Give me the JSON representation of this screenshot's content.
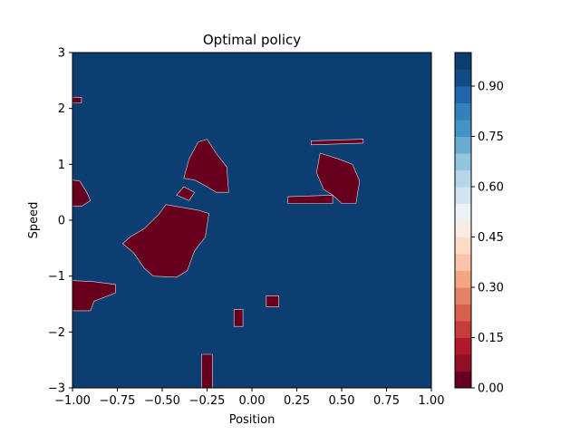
{
  "chart_data": {
    "type": "heatmap",
    "title": "Optimal policy",
    "xlabel": "Position",
    "ylabel": "Speed",
    "xlim": [
      -1.0,
      1.0
    ],
    "ylim": [
      -3,
      3
    ],
    "x_ticks": [
      {
        "value": -1.0,
        "label": "−1.00"
      },
      {
        "value": -0.75,
        "label": "−0.75"
      },
      {
        "value": -0.5,
        "label": "−0.50"
      },
      {
        "value": -0.25,
        "label": "−0.25"
      },
      {
        "value": 0.0,
        "label": "0.00"
      },
      {
        "value": 0.25,
        "label": "0.25"
      },
      {
        "value": 0.5,
        "label": "0.50"
      },
      {
        "value": 0.75,
        "label": "0.75"
      },
      {
        "value": 1.0,
        "label": "1.00"
      }
    ],
    "y_ticks": [
      {
        "value": -3,
        "label": "−3"
      },
      {
        "value": -2,
        "label": "−2"
      },
      {
        "value": -1,
        "label": "−1"
      },
      {
        "value": 0,
        "label": "0"
      },
      {
        "value": 1,
        "label": "1"
      },
      {
        "value": 2,
        "label": "2"
      },
      {
        "value": 3,
        "label": "3"
      }
    ],
    "colorbar": {
      "min": 0.0,
      "max": 1.0,
      "levels": 20,
      "colormap": "RdBu",
      "tick_values": [
        0.0,
        0.15,
        0.3,
        0.45,
        0.6,
        0.75,
        0.9
      ],
      "tick_labels": [
        "0.00",
        "0.15",
        "0.30",
        "0.45",
        "0.60",
        "0.75",
        "0.90"
      ],
      "bands": [
        "#67001f",
        "#930f27",
        "#b2182b",
        "#c43c3c",
        "#d6604d",
        "#e58267",
        "#f4a582",
        "#f9c4a9",
        "#fddbc7",
        "#f8ebe3",
        "#edf1f4",
        "#d1e5f0",
        "#b5d6e8",
        "#92c5de",
        "#6aacd0",
        "#4393c3",
        "#3480b9",
        "#2166ac",
        "#134b88",
        "#0c3e72"
      ]
    },
    "background_value": 1.0,
    "regions_value": 0.0,
    "regions": [
      {
        "name": "center-blob",
        "points": [
          [
            -0.72,
            -0.42
          ],
          [
            -0.66,
            -0.58
          ],
          [
            -0.6,
            -0.86
          ],
          [
            -0.55,
            -1.0
          ],
          [
            -0.42,
            -1.02
          ],
          [
            -0.36,
            -0.9
          ],
          [
            -0.32,
            -0.55
          ],
          [
            -0.26,
            -0.3
          ],
          [
            -0.24,
            0.12
          ],
          [
            -0.3,
            0.18
          ],
          [
            -0.48,
            0.28
          ],
          [
            -0.52,
            0.1
          ],
          [
            -0.6,
            -0.15
          ],
          [
            -0.68,
            -0.3
          ]
        ]
      },
      {
        "name": "upper-left-blob",
        "points": [
          [
            -0.38,
            0.75
          ],
          [
            -0.35,
            1.1
          ],
          [
            -0.3,
            1.4
          ],
          [
            -0.25,
            1.45
          ],
          [
            -0.2,
            1.2
          ],
          [
            -0.14,
            0.95
          ],
          [
            -0.13,
            0.5
          ],
          [
            -0.2,
            0.5
          ],
          [
            -0.25,
            0.6
          ],
          [
            -0.32,
            0.72
          ]
        ]
      },
      {
        "name": "right-blob",
        "points": [
          [
            0.38,
            1.2
          ],
          [
            0.48,
            1.1
          ],
          [
            0.56,
            1.0
          ],
          [
            0.6,
            0.7
          ],
          [
            0.58,
            0.3
          ],
          [
            0.5,
            0.3
          ],
          [
            0.45,
            0.45
          ],
          [
            0.4,
            0.55
          ],
          [
            0.36,
            0.85
          ]
        ]
      },
      {
        "name": "right-top-strip",
        "points": [
          [
            0.33,
            1.42
          ],
          [
            0.62,
            1.45
          ],
          [
            0.62,
            1.38
          ],
          [
            0.33,
            1.35
          ]
        ]
      },
      {
        "name": "right-lower-strip",
        "points": [
          [
            0.2,
            0.42
          ],
          [
            0.45,
            0.45
          ],
          [
            0.45,
            0.3
          ],
          [
            0.2,
            0.3
          ]
        ]
      },
      {
        "name": "left-bottom-blob",
        "points": [
          [
            -1.0,
            -1.08
          ],
          [
            -0.88,
            -1.1
          ],
          [
            -0.76,
            -1.15
          ],
          [
            -0.76,
            -1.3
          ],
          [
            -0.88,
            -1.45
          ],
          [
            -0.9,
            -1.62
          ],
          [
            -1.0,
            -1.62
          ]
        ]
      },
      {
        "name": "left-middle-blob",
        "points": [
          [
            -1.0,
            0.72
          ],
          [
            -0.96,
            0.7
          ],
          [
            -0.92,
            0.5
          ],
          [
            -0.9,
            0.35
          ],
          [
            -0.95,
            0.25
          ],
          [
            -1.0,
            0.25
          ]
        ]
      },
      {
        "name": "left-top-strip",
        "points": [
          [
            -1.0,
            2.2
          ],
          [
            -0.95,
            2.2
          ],
          [
            -0.95,
            2.1
          ],
          [
            -1.0,
            2.1
          ]
        ]
      },
      {
        "name": "bottom-stalk",
        "points": [
          [
            -0.28,
            -2.4
          ],
          [
            -0.22,
            -2.4
          ],
          [
            -0.22,
            -3.0
          ],
          [
            -0.28,
            -3.0
          ]
        ]
      },
      {
        "name": "mid-small-patch",
        "points": [
          [
            -0.1,
            -1.6
          ],
          [
            -0.05,
            -1.6
          ],
          [
            -0.05,
            -1.9
          ],
          [
            -0.1,
            -1.9
          ]
        ]
      },
      {
        "name": "right-mid-patch",
        "points": [
          [
            0.08,
            -1.35
          ],
          [
            0.15,
            -1.35
          ],
          [
            0.15,
            -1.55
          ],
          [
            0.08,
            -1.55
          ]
        ]
      },
      {
        "name": "upper-left-fringe",
        "points": [
          [
            -0.42,
            0.45
          ],
          [
            -0.38,
            0.6
          ],
          [
            -0.32,
            0.5
          ],
          [
            -0.35,
            0.35
          ]
        ]
      }
    ]
  }
}
